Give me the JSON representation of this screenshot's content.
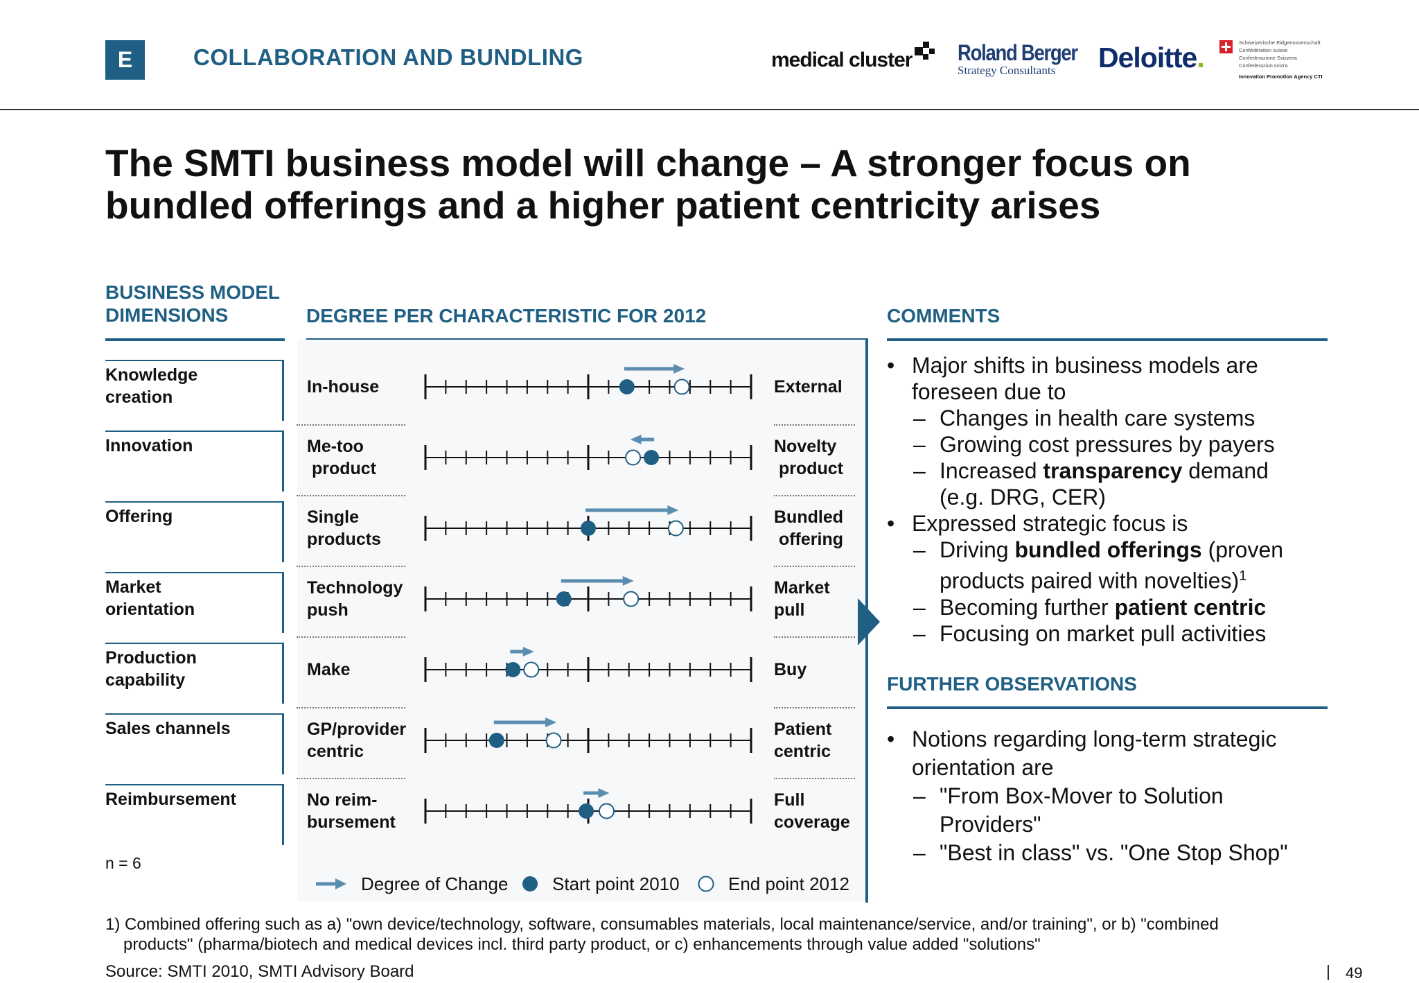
{
  "header": {
    "section_letter": "E",
    "section_title": "COLLABORATION AND BUNDLING",
    "logos": {
      "medical_cluster": "medical cluster",
      "roland_berger": "Roland Berger",
      "roland_berger_sub": "Strategy Consultants",
      "deloitte": "Deloitte",
      "swiss_lines": [
        "Schweizerische Eidgenossenschaft",
        "Confédération suisse",
        "Confederazione Svizzera",
        "Confederaziun svizra"
      ],
      "swiss_agency": "Innovation Promotion Agency CTI"
    }
  },
  "title_lines": [
    "The SMTI business model will change – A stronger focus on",
    "bundled offerings and a higher patient centricity arises"
  ],
  "columns": {
    "dimensions_head": [
      "BUSINESS MODEL",
      "DIMENSIONS"
    ],
    "degree_head": "DEGREE PER CHARACTERISTIC FOR 2012",
    "comments_head": "COMMENTS",
    "further_head": "FURTHER OBSERVATIONS"
  },
  "chart_data": {
    "type": "scale",
    "scale_ticks": 16,
    "rows": [
      {
        "dimension": [
          "Knowledge",
          "creation"
        ],
        "left": [
          "In-house"
        ],
        "right": [
          "External"
        ],
        "start": 9.9,
        "end": 12.6
      },
      {
        "dimension": [
          "Innovation"
        ],
        "left": [
          "Me-too",
          " product"
        ],
        "right": [
          "Novelty",
          " product"
        ],
        "start": 11.1,
        "end": 10.2
      },
      {
        "dimension": [
          "Offering"
        ],
        "left": [
          "Single",
          "products"
        ],
        "right": [
          "Bundled",
          " offering"
        ],
        "start": 8.0,
        "end": 12.3
      },
      {
        "dimension": [
          "Market",
          "orientation"
        ],
        "left": [
          "Technology",
          "push"
        ],
        "right": [
          "Market",
          "pull"
        ],
        "start": 6.8,
        "end": 10.1
      },
      {
        "dimension": [
          "Production",
          "capability"
        ],
        "left": [
          "Make"
        ],
        "right": [
          "Buy"
        ],
        "start": 4.3,
        "end": 5.2
      },
      {
        "dimension": [
          "Sales channels"
        ],
        "left": [
          "GP/provider",
          "centric"
        ],
        "right": [
          "Patient",
          "centric"
        ],
        "start": 3.5,
        "end": 6.3
      },
      {
        "dimension": [
          "Reimbursement"
        ],
        "left": [
          "No reim-",
          "bursement"
        ],
        "right": [
          "Full",
          "coverage"
        ],
        "start": 7.9,
        "end": 8.9
      }
    ],
    "legend": [
      "Degree of Change",
      "Start point 2010",
      "End point 2012"
    ],
    "colors": {
      "marker": "#1f5f83",
      "arrow": "#5b8db0"
    }
  },
  "n_label": "n = 6",
  "comments": {
    "bullet1": "Major shifts in business models are",
    "bullet1b": "foreseen due to",
    "sub1": "Changes in health care systems",
    "sub2": "Growing cost pressures by payers",
    "sub3a": "Increased ",
    "sub3b": "transparency",
    "sub3c": " demand",
    "sub3d": "(e.g. DRG, CER)",
    "bullet2": "Expressed strategic focus is",
    "sub4a": "Driving ",
    "sub4b": "bundled offerings",
    "sub4c": " (proven",
    "sub4d": "products paired with novelties)",
    "sub4sup": "1",
    "sub5a": "Becoming further ",
    "sub5b": "patient centric",
    "sub6": "Focusing on market pull activities"
  },
  "further": {
    "bullet1": "Notions regarding long-term strategic",
    "bullet1b": "orientation are",
    "sub1": "\"From Box-Mover to Solution",
    "sub1b": "Providers\"",
    "sub2": "\"Best in class\" vs. \"One Stop Shop\""
  },
  "footnote": {
    "line1": "1) Combined offering such as a) \"own device/technology, software, consumables materials, local maintenance/service, and/or training\", or b) \"combined",
    "line2": "products\" (pharma/biotech and medical devices incl. third party product, or c) enhancements through value added \"solutions\"",
    "source": "Source:  SMTI 2010, SMTI Advisory Board"
  },
  "page_number": "49"
}
